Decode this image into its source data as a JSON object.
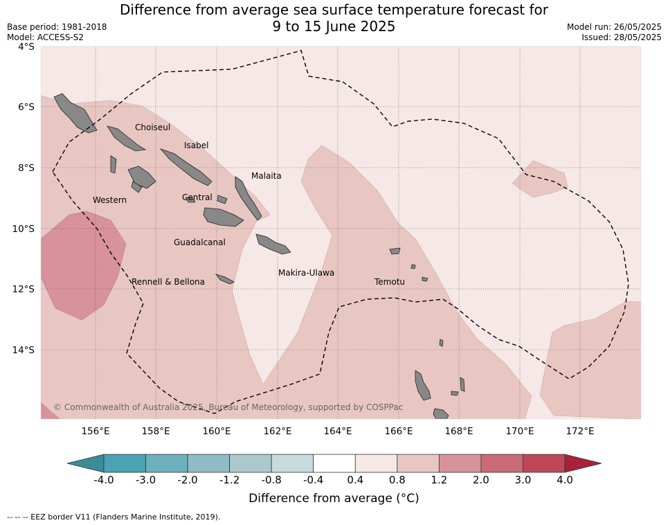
{
  "title_line1": "Difference from average sea surface temperature forecast for",
  "title_line2": "9 to 15 June 2025",
  "base_period": "Base period: 1981-2018",
  "model": "Model: ACCESS-S2",
  "model_run": "Model run: 26/05/2025",
  "issued": "Issued: 28/05/2025",
  "lat_labels": [
    "4°S",
    "6°S",
    "8°S",
    "10°S",
    "12°S",
    "14°S"
  ],
  "lon_labels": [
    "156°E",
    "158°E",
    "160°E",
    "162°E",
    "164°E",
    "166°E",
    "168°E",
    "170°E",
    "172°E"
  ],
  "regions": [
    "Choiseul",
    "Isabel",
    "Malaita",
    "Western",
    "Central",
    "Guadalcanal",
    "Makira-Ulawa",
    "Rennell & Bellona",
    "Temotu"
  ],
  "copyright": "© Commonwealth of Australia 2025, Bureau of Meteorology, supported by COSPPac",
  "colorbar": {
    "ticks": [
      "-4.0",
      "-3.0",
      "-2.0",
      "-1.2",
      "-0.8",
      "-0.4",
      "0.4",
      "0.8",
      "1.2",
      "2.0",
      "3.0",
      "4.0"
    ],
    "colors": [
      "#3a8c97",
      "#4aa2b3",
      "#6fb0bf",
      "#90bcc6",
      "#aac9cd",
      "#c8dadd",
      "#ffffff",
      "#f5e8e6",
      "#e8c7c2",
      "#d7929a",
      "#c96b76",
      "#be4857",
      "#a8203a"
    ],
    "label": "Difference from average (°C)"
  },
  "footnote": "--  --  -- EEZ border V11 (Flanders Marine Institute, 2019)."
}
